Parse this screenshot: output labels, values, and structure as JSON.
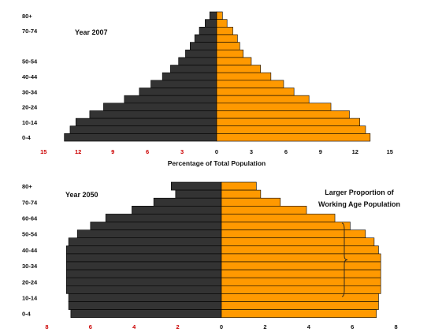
{
  "chart_data": [
    {
      "type": "bar",
      "orientation": "horizontal-pyramid",
      "title": "Year 2007",
      "xlabel": "Percentage of Total Population",
      "category_labels": [
        "80+",
        "70-74",
        "50-54",
        "40-44",
        "30-34",
        "20-24",
        "10-14",
        "0-4"
      ],
      "xticks_left": [
        "15",
        "12",
        "9",
        "6",
        "3",
        "0"
      ],
      "xticks_right": [
        "3",
        "6",
        "9",
        "12",
        "15"
      ],
      "xlim": [
        -15,
        15
      ],
      "series": [
        {
          "side": "left",
          "color": "#333333",
          "values": [
            0.6,
            1.0,
            1.5,
            1.9,
            2.3,
            2.7,
            3.3,
            4.0,
            4.7,
            5.7,
            6.7,
            8.0,
            9.8,
            11.0,
            12.2,
            12.7,
            13.2
          ]
        },
        {
          "side": "right",
          "color": "#ff9900",
          "values": [
            0.5,
            0.9,
            1.4,
            1.8,
            2.0,
            2.3,
            3.0,
            3.8,
            4.7,
            5.8,
            6.7,
            8.0,
            9.9,
            11.5,
            12.4,
            12.9,
            13.3
          ]
        }
      ]
    },
    {
      "type": "bar",
      "orientation": "horizontal-pyramid",
      "title": "Year 2050",
      "annotation": "Larger Proportion of Working Age Population",
      "category_labels": [
        "80+",
        "70-74",
        "60-64",
        "50-54",
        "40-44",
        "30-34",
        "20-24",
        "10-14",
        "0-4"
      ],
      "xticks_left": [
        "8",
        "6",
        "4",
        "2",
        "0"
      ],
      "xticks_right": [
        "2",
        "4",
        "6",
        "8"
      ],
      "xlim": [
        -8,
        8
      ],
      "series": [
        {
          "side": "left",
          "color": "#333333",
          "values": [
            2.3,
            2.1,
            3.1,
            4.1,
            5.3,
            6.0,
            6.6,
            7.0,
            7.1,
            7.1,
            7.1,
            7.1,
            7.1,
            7.1,
            7.0,
            7.0,
            6.9
          ]
        },
        {
          "side": "right",
          "color": "#ff9900",
          "values": [
            1.6,
            1.8,
            2.7,
            3.9,
            5.2,
            5.9,
            6.6,
            7.0,
            7.2,
            7.3,
            7.3,
            7.3,
            7.3,
            7.3,
            7.2,
            7.2,
            7.1
          ]
        }
      ]
    }
  ],
  "colors": {
    "male": "#333333",
    "female": "#ff9900",
    "negative_tick": "#cc0000"
  }
}
